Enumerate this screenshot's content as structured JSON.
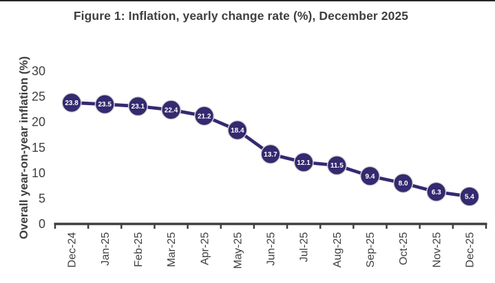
{
  "page": {
    "title": "Figure 1: Inflation, yearly change rate (%), December 2025"
  },
  "chart_data": {
    "type": "line",
    "title": "Figure 1: Inflation, yearly change rate (%), December 2025",
    "xlabel": "",
    "ylabel": "Overall year-on-year inflation (%)",
    "categories": [
      "Dec-24",
      "Jan-25",
      "Feb-25",
      "Mar-25",
      "Apr-25",
      "May-25",
      "Jun-25",
      "Jul-25",
      "Aug-25",
      "Sep-25",
      "Oct-25",
      "Nov-25",
      "Dec-25"
    ],
    "series": [
      {
        "name": "Overall year-on-year inflation (%)",
        "values": [
          23.8,
          23.5,
          23.1,
          22.4,
          21.2,
          18.4,
          13.7,
          12.1,
          11.5,
          9.4,
          8.0,
          6.3,
          5.4
        ]
      }
    ],
    "data_labels": [
      "23.8",
      "23.5",
      "23.1",
      "22.4",
      "21.2",
      "18.4",
      "13.7",
      "12.1",
      "11.5",
      "9.4",
      "8.0",
      "6.3",
      "5.4"
    ],
    "ylim": [
      0,
      30
    ],
    "y_ticks": [
      0,
      5,
      10,
      15,
      20,
      25,
      30
    ],
    "grid": false,
    "legend_position": "none",
    "colors": {
      "line": "#342a70",
      "marker_fill": "#342a70",
      "marker_outline": "#d8d8d8",
      "data_label_text": "#ffffff",
      "axis": "#3f3f3f",
      "text": "#3f3f3f",
      "top_rule": "#262626"
    }
  }
}
